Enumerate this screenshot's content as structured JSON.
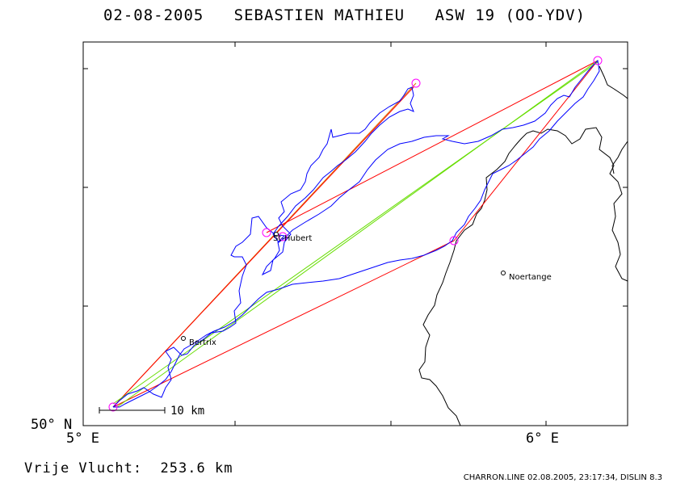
{
  "header": {
    "date": "02-08-2005",
    "pilot": "SEBASTIEN MATHIEU",
    "glider": "ASW 19 (OO-YDV)"
  },
  "axes": {
    "y_label": "50° N",
    "x_label_left": "5° E",
    "x_label_right": "6° E"
  },
  "places": [
    {
      "name": "St-Hubert"
    },
    {
      "name": "Bertrix"
    },
    {
      "name": "Noertange"
    }
  ],
  "scale": {
    "label": "10 km"
  },
  "footer": {
    "distance_label": "Vrije Vlucht:",
    "distance_value": "253.6 km",
    "credits": "CHARRON.LINE 02.08.2005, 23:17:34, DISLIN 8.3"
  },
  "colors": {
    "track": "#0000ff",
    "turnpoint": "#ff00ff",
    "leg_red": "#ff0000",
    "leg_green": "#66dd00",
    "leg_orange": "#dd7700",
    "border": "#000000"
  }
}
